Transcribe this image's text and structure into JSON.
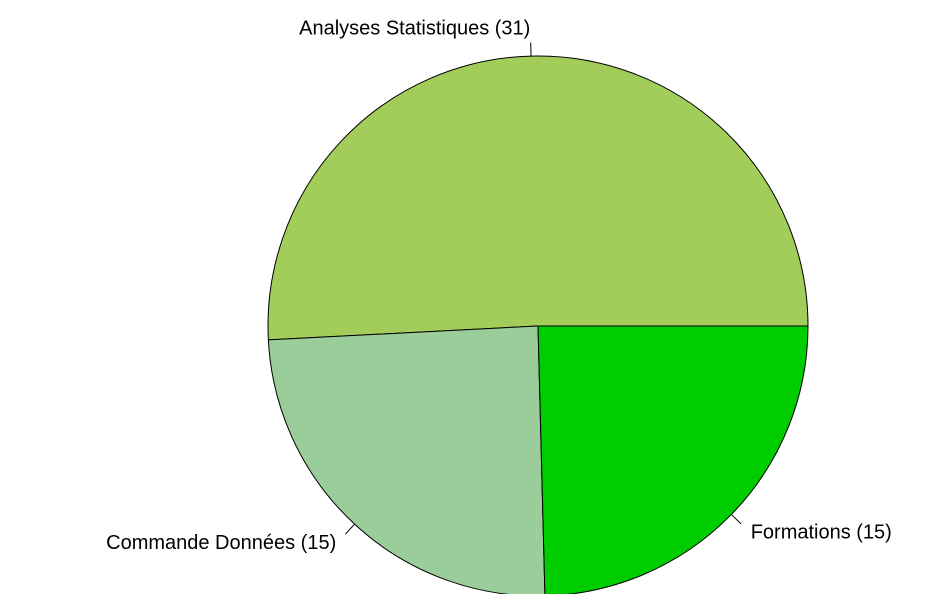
{
  "chart_data": {
    "type": "pie",
    "categories": [
      "Analyses Statistiques (31)",
      "Commande Données (15)",
      "Formations (15)"
    ],
    "values": [
      31,
      15,
      15
    ],
    "colors": [
      "#a2cd5a",
      "#9bcd9b",
      "#00cd00"
    ]
  }
}
